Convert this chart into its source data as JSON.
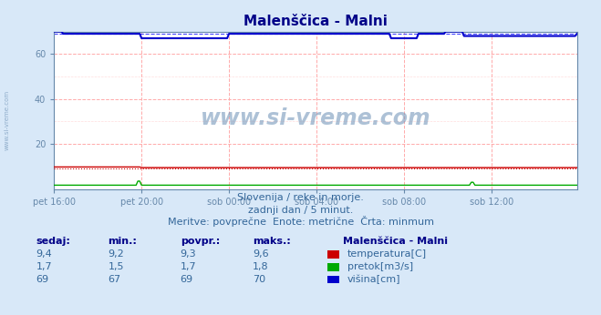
{
  "title": "Malenščica - Malni",
  "background_color": "#d8e8f8",
  "plot_bg_color": "#ffffff",
  "grid_color_major": "#ffaaaa",
  "grid_color_minor": "#ffdddd",
  "xlabel_ticks": [
    "pet 16:00",
    "pet 20:00",
    "sob 00:00",
    "sob 04:00",
    "sob 08:00",
    "sob 12:00"
  ],
  "xtick_pos": [
    0,
    48,
    96,
    144,
    192,
    240
  ],
  "ylabel_ticks": [
    20,
    40,
    60
  ],
  "ylim": [
    0,
    70
  ],
  "xlim": [
    0,
    287
  ],
  "subtitle1": "Slovenija / reke in morje.",
  "subtitle2": "zadnji dan / 5 minut.",
  "subtitle3": "Meritve: povprečne  Enote: metrične  Črta: minmum",
  "watermark": "www.si-vreme.com",
  "legend_title": "Malenščica - Malni",
  "legend_items": [
    {
      "label": "temperatura[C]",
      "color": "#cc0000"
    },
    {
      "label": "pretok[m3/s]",
      "color": "#00aa00"
    },
    {
      "label": "višina[cm]",
      "color": "#0000cc"
    }
  ],
  "table_headers": [
    "sedaj:",
    "min.:",
    "povpr.:",
    "maks.:"
  ],
  "table_data": [
    [
      "9,4",
      "9,2",
      "9,3",
      "9,6"
    ],
    [
      "1,7",
      "1,5",
      "1,7",
      "1,8"
    ],
    [
      "69",
      "67",
      "69",
      "70"
    ]
  ],
  "n_points": 288,
  "temp_color": "#cc0000",
  "pretok_color": "#00aa00",
  "visina_color": "#0000cc",
  "visina_dashed_color": "#4444ff",
  "axis_color": "#6688aa",
  "title_color": "#000088",
  "text_color": "#336699",
  "watermark_color": "#7799bb"
}
